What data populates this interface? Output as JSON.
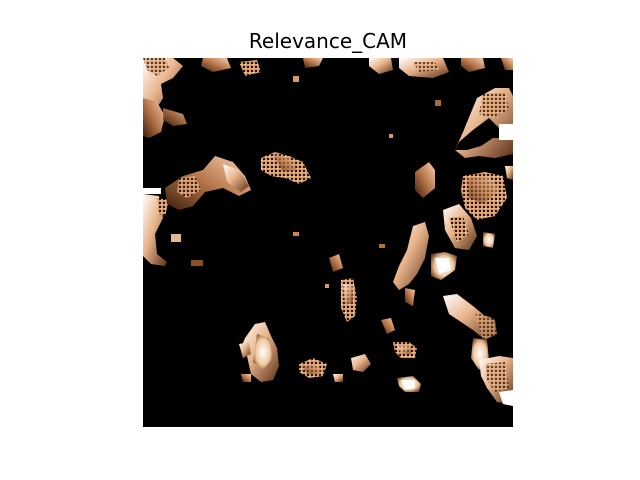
{
  "figure": {
    "title": "Relevance_CAM"
  },
  "image": {
    "description_icon": "relevance-heatmap",
    "colormap": "copper",
    "colors": {
      "background": "#000000",
      "dark_copper": "#4a2a14",
      "mid_copper": "#9c6236",
      "light_copper": "#e0a878",
      "highlight": "#ffe6d0",
      "white": "#ffffff"
    }
  }
}
